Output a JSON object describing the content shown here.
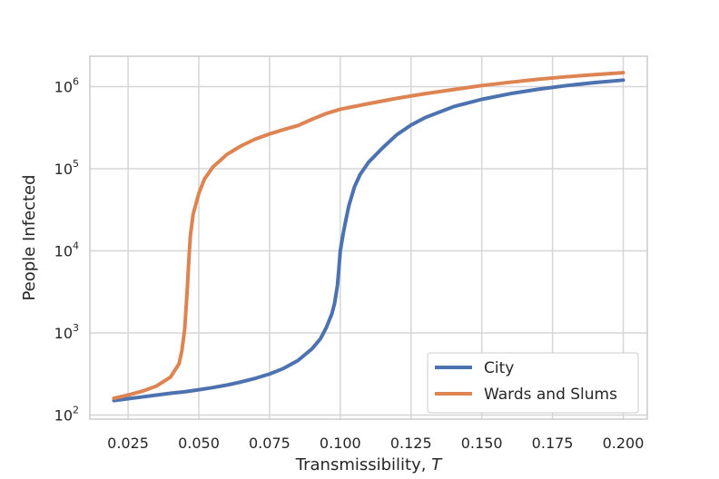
{
  "chart_data": {
    "type": "line",
    "title": "",
    "xlabel": "Transmissibility, ",
    "xlabel_symbol": "T",
    "ylabel": "People Infected",
    "xlim": [
      0.0115,
      0.2085
    ],
    "ylim_log10": [
      1.95,
      6.37
    ],
    "yscale": "log",
    "grid": true,
    "legend_position": "lower-right",
    "x_ticks": [
      "0.025",
      "0.050",
      "0.075",
      "0.100",
      "0.125",
      "0.150",
      "0.175",
      "0.200"
    ],
    "x_tick_values": [
      0.025,
      0.05,
      0.075,
      0.1,
      0.125,
      0.15,
      0.175,
      0.2
    ],
    "y_ticks": [
      {
        "base": "10",
        "exp": "2",
        "value": 100
      },
      {
        "base": "10",
        "exp": "3",
        "value": 1000
      },
      {
        "base": "10",
        "exp": "4",
        "value": 10000
      },
      {
        "base": "10",
        "exp": "5",
        "value": 100000
      },
      {
        "base": "10",
        "exp": "6",
        "value": 1000000
      }
    ],
    "series": [
      {
        "name": "City",
        "color": "#4c72b0",
        "points": [
          [
            0.02,
            150
          ],
          [
            0.025,
            158
          ],
          [
            0.03,
            166
          ],
          [
            0.035,
            175
          ],
          [
            0.04,
            184
          ],
          [
            0.045,
            192
          ],
          [
            0.05,
            203
          ],
          [
            0.055,
            216
          ],
          [
            0.06,
            232
          ],
          [
            0.065,
            253
          ],
          [
            0.07,
            280
          ],
          [
            0.075,
            316
          ],
          [
            0.08,
            370
          ],
          [
            0.085,
            460
          ],
          [
            0.09,
            640
          ],
          [
            0.093,
            850
          ],
          [
            0.095,
            1150
          ],
          [
            0.097,
            1700
          ],
          [
            0.098,
            2300
          ],
          [
            0.099,
            3800
          ],
          [
            0.0995,
            6000
          ],
          [
            0.1,
            10000
          ],
          [
            0.101,
            16000
          ],
          [
            0.102,
            24000
          ],
          [
            0.103,
            35000
          ],
          [
            0.105,
            60000
          ],
          [
            0.107,
            85000
          ],
          [
            0.11,
            120000
          ],
          [
            0.115,
            180000
          ],
          [
            0.12,
            260000
          ],
          [
            0.125,
            340000
          ],
          [
            0.13,
            420000
          ],
          [
            0.14,
            570000
          ],
          [
            0.15,
            700000
          ],
          [
            0.16,
            820000
          ],
          [
            0.17,
            930000
          ],
          [
            0.18,
            1030000
          ],
          [
            0.19,
            1120000
          ],
          [
            0.2,
            1200000
          ]
        ]
      },
      {
        "name": "Wards and Slums",
        "color": "#dd8452",
        "points": [
          [
            0.02,
            160
          ],
          [
            0.025,
            175
          ],
          [
            0.03,
            195
          ],
          [
            0.035,
            225
          ],
          [
            0.04,
            290
          ],
          [
            0.043,
            420
          ],
          [
            0.044,
            600
          ],
          [
            0.045,
            1100
          ],
          [
            0.0455,
            2000
          ],
          [
            0.046,
            3800
          ],
          [
            0.0465,
            8000
          ],
          [
            0.047,
            15000
          ],
          [
            0.048,
            28000
          ],
          [
            0.05,
            50000
          ],
          [
            0.052,
            75000
          ],
          [
            0.055,
            105000
          ],
          [
            0.06,
            150000
          ],
          [
            0.065,
            190000
          ],
          [
            0.07,
            230000
          ],
          [
            0.075,
            265000
          ],
          [
            0.08,
            300000
          ],
          [
            0.085,
            335000
          ],
          [
            0.09,
            400000
          ],
          [
            0.095,
            470000
          ],
          [
            0.1,
            530000
          ],
          [
            0.11,
            620000
          ],
          [
            0.12,
            720000
          ],
          [
            0.13,
            820000
          ],
          [
            0.14,
            920000
          ],
          [
            0.15,
            1030000
          ],
          [
            0.16,
            1130000
          ],
          [
            0.17,
            1230000
          ],
          [
            0.18,
            1320000
          ],
          [
            0.19,
            1400000
          ],
          [
            0.2,
            1480000
          ]
        ]
      }
    ]
  }
}
